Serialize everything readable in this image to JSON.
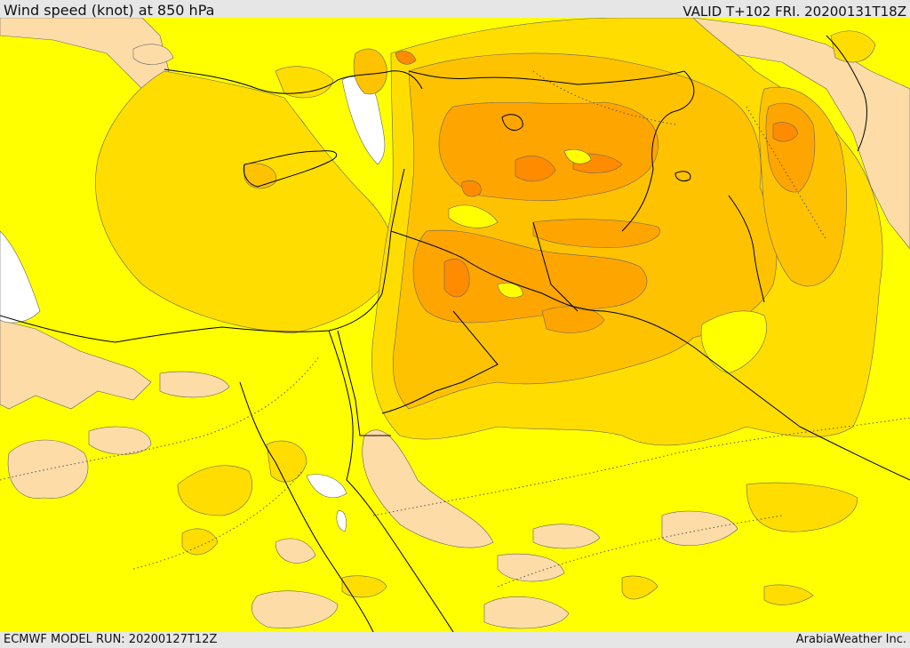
{
  "header": {
    "title": "Wind speed (knot) at 850 hPa",
    "valid": "VALID T+102 FRI. 20200131T18Z"
  },
  "footer": {
    "model_run": "ECMWF MODEL RUN: 20200127T12Z",
    "provider": "ArabiaWeather Inc."
  },
  "colors": {
    "yellow": "#ffff00",
    "light_gold": "#ffdd00",
    "gold": "#ffc200",
    "orange": "#ffa500",
    "dark_orange": "#ff8c00",
    "tan": "#fddca8",
    "white": "#ffffff",
    "boundary": "#000000"
  }
}
